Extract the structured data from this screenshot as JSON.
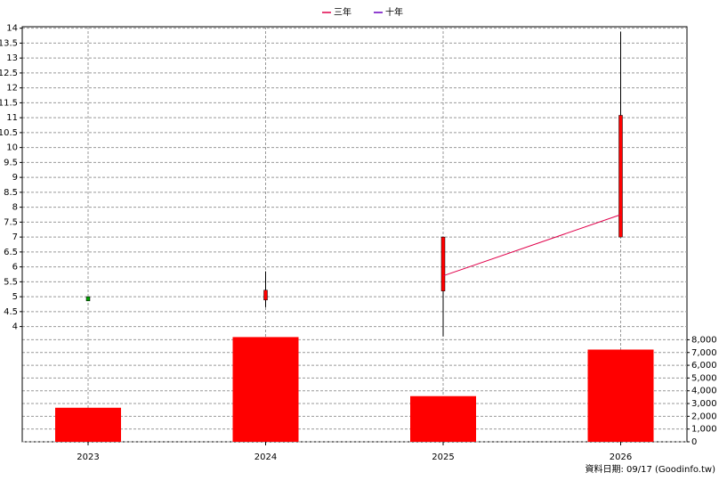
{
  "chart_data": {
    "type": "candlestick",
    "categories": [
      "2023",
      "2024",
      "2025",
      "2026"
    ],
    "open": [
      5.0,
      4.89,
      5.19,
      7.0
    ],
    "high": [
      5.0,
      5.85,
      7.0,
      13.88
    ],
    "low": [
      4.86,
      4.65,
      3.67,
      7.0
    ],
    "close": [
      4.86,
      5.22,
      7.0,
      11.08
    ],
    "up_color": "#ff0000",
    "down_color": "#00a000",
    "series": [
      {
        "name": "三年",
        "color": "#e0004a",
        "values": [
          null,
          null,
          5.7,
          7.75
        ]
      },
      {
        "name": "十年",
        "color": "#6a00c0",
        "values": [
          null,
          null,
          null,
          null
        ]
      }
    ],
    "volume": {
      "type": "bar",
      "color": "#ff0000",
      "axis": "y2",
      "values": [
        2670,
        8210,
        3580,
        7230
      ]
    },
    "ylim": [
      3.6,
      14.05
    ],
    "yticks": [
      4,
      4.5,
      5,
      5.5,
      6,
      6.5,
      7,
      7.5,
      8,
      8.5,
      9,
      9.5,
      10,
      10.5,
      11,
      11.5,
      12,
      12.5,
      13,
      13.5,
      14
    ],
    "y2lim": [
      0,
      8100
    ],
    "y2ticks": [
      0,
      {
        "value": 1000,
        "label": "1,000"
      },
      {
        "value": 2000,
        "label": "2,000"
      },
      {
        "value": 3000,
        "label": "3,000"
      },
      {
        "value": 4000,
        "label": "4,000"
      },
      {
        "value": 5000,
        "label": "5,000"
      },
      {
        "value": 6000,
        "label": "6,000"
      },
      {
        "value": 7000,
        "label": "7,000"
      },
      {
        "value": 8000,
        "label": "8,000"
      }
    ],
    "grid": true,
    "footer": "資料日期: 09/17  (Goodinfo.tw)"
  }
}
